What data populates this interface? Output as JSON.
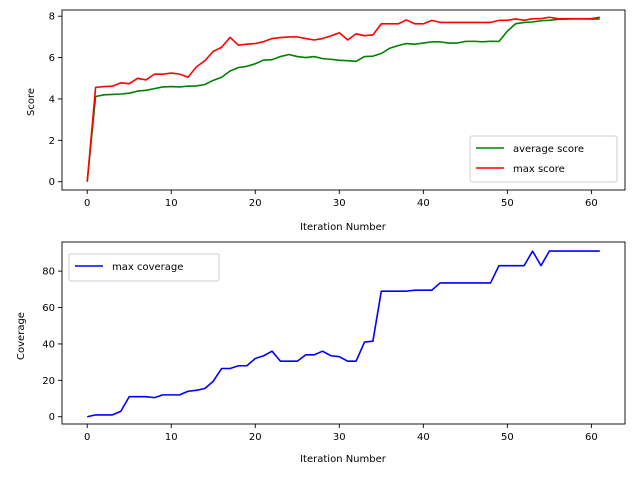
{
  "chart_data": [
    {
      "type": "line",
      "xlabel": "Iteration Number",
      "ylabel": "Score",
      "xlim": [
        -3,
        64
      ],
      "ylim": [
        -0.4,
        8.3
      ],
      "xticks": [
        0,
        10,
        20,
        30,
        40,
        50,
        60
      ],
      "yticks": [
        0,
        2,
        4,
        6,
        8
      ],
      "grid": false,
      "legend": "lower-right",
      "x": [
        0,
        1,
        2,
        3,
        4,
        5,
        6,
        7,
        8,
        9,
        10,
        11,
        12,
        13,
        14,
        15,
        16,
        17,
        18,
        19,
        20,
        21,
        22,
        23,
        24,
        25,
        26,
        27,
        28,
        29,
        30,
        31,
        32,
        33,
        34,
        35,
        36,
        37,
        38,
        39,
        40,
        41,
        42,
        43,
        44,
        45,
        46,
        47,
        48,
        49,
        50,
        51,
        52,
        53,
        54,
        55,
        56,
        57,
        58,
        59,
        60,
        61
      ],
      "series": [
        {
          "name": "average score",
          "color": "#008000",
          "values": [
            0.0,
            4.12,
            4.2,
            4.22,
            4.24,
            4.28,
            4.38,
            4.42,
            4.5,
            4.58,
            4.6,
            4.58,
            4.62,
            4.63,
            4.7,
            4.9,
            5.05,
            5.35,
            5.52,
            5.58,
            5.7,
            5.88,
            5.9,
            6.05,
            6.15,
            6.05,
            6.0,
            6.05,
            5.95,
            5.92,
            5.87,
            5.85,
            5.82,
            6.05,
            6.07,
            6.2,
            6.45,
            6.58,
            6.68,
            6.65,
            6.7,
            6.76,
            6.76,
            6.7,
            6.7,
            6.78,
            6.79,
            6.76,
            6.79,
            6.78,
            7.28,
            7.64,
            7.7,
            7.72,
            7.78,
            7.8,
            7.85,
            7.86,
            7.87,
            7.87,
            7.86,
            7.87
          ]
        },
        {
          "name": "max score",
          "color": "#ff0000",
          "values": [
            0.0,
            4.56,
            4.6,
            4.62,
            4.78,
            4.74,
            5.0,
            4.92,
            5.2,
            5.2,
            5.25,
            5.2,
            5.05,
            5.55,
            5.85,
            6.3,
            6.5,
            6.98,
            6.6,
            6.65,
            6.68,
            6.77,
            6.92,
            6.97,
            7.0,
            7.0,
            6.92,
            6.85,
            6.92,
            7.05,
            7.2,
            6.85,
            7.15,
            7.06,
            7.1,
            7.63,
            7.63,
            7.63,
            7.82,
            7.63,
            7.63,
            7.8,
            7.7,
            7.7,
            7.7,
            7.7,
            7.7,
            7.7,
            7.7,
            7.8,
            7.8,
            7.87,
            7.8,
            7.88,
            7.88,
            7.95,
            7.88,
            7.88,
            7.88,
            7.88,
            7.88,
            7.95
          ]
        }
      ]
    },
    {
      "type": "line",
      "xlabel": "Iteration Number",
      "ylabel": "Coverage",
      "xlim": [
        -3,
        64
      ],
      "ylim": [
        -4,
        96
      ],
      "xticks": [
        0,
        10,
        20,
        30,
        40,
        50,
        60
      ],
      "yticks": [
        0,
        20,
        40,
        60,
        80
      ],
      "grid": false,
      "legend": "upper-left",
      "x": [
        0,
        1,
        2,
        3,
        4,
        5,
        6,
        7,
        8,
        9,
        10,
        11,
        12,
        13,
        14,
        15,
        16,
        17,
        18,
        19,
        20,
        21,
        22,
        23,
        24,
        25,
        26,
        27,
        28,
        29,
        30,
        31,
        32,
        33,
        34,
        35,
        36,
        37,
        38,
        39,
        40,
        41,
        42,
        43,
        44,
        45,
        46,
        47,
        48,
        49,
        50,
        51,
        52,
        53,
        54,
        55,
        56,
        57,
        58,
        59,
        60,
        61
      ],
      "series": [
        {
          "name": "max coverage",
          "color": "#0000ff",
          "values": [
            0,
            1,
            1,
            1,
            3,
            11,
            11,
            11,
            10.5,
            12,
            12,
            12,
            14,
            14.5,
            15.5,
            19.5,
            26.5,
            26.5,
            28,
            28,
            32,
            33.5,
            36,
            30.5,
            30.5,
            30.5,
            34,
            34,
            36,
            33.5,
            33,
            30.5,
            30.5,
            41,
            41.5,
            69,
            69,
            69,
            69,
            69.5,
            69.5,
            69.5,
            73.5,
            73.5,
            73.5,
            73.5,
            73.5,
            73.5,
            73.5,
            83,
            83,
            83,
            83,
            91,
            83,
            91,
            91,
            91,
            91,
            91,
            91,
            91
          ]
        }
      ]
    }
  ]
}
